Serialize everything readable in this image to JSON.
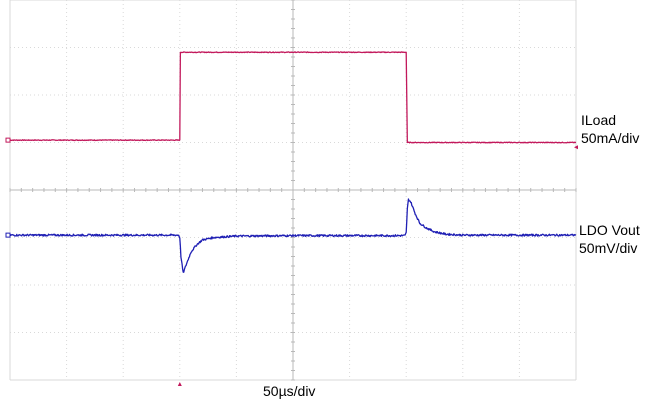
{
  "chart_data": {
    "type": "line",
    "grid": true,
    "divisions": {
      "x": 10,
      "y": 8
    },
    "timebase_label": "50µs/div",
    "x_range_us": [
      0,
      500
    ],
    "series": [
      {
        "name": "ILoad",
        "scale_label": "50mA/div",
        "color": "#c2185b",
        "x_us": [
          0,
          150,
          150.5,
          350,
          351,
          500
        ],
        "y_div": [
          1.05,
          1.05,
          2.9,
          2.9,
          1.0,
          1.0
        ]
      },
      {
        "name": "LDO Vout",
        "scale_label": "50mV/div",
        "color": "#1f1fb4",
        "x_us": [
          0,
          149,
          150,
          151,
          153,
          156,
          160,
          165,
          170,
          180,
          200,
          250,
          349,
          350,
          351,
          352,
          354,
          358,
          362,
          368,
          375,
          385,
          400,
          450,
          500
        ],
        "y_div": [
          -0.95,
          -0.95,
          -1.0,
          -1.4,
          -1.75,
          -1.55,
          -1.3,
          -1.15,
          -1.05,
          -1.0,
          -0.97,
          -0.96,
          -0.96,
          -0.9,
          -0.4,
          -0.2,
          -0.25,
          -0.5,
          -0.7,
          -0.8,
          -0.88,
          -0.93,
          -0.95,
          -0.95,
          -0.95
        ]
      }
    ]
  }
}
